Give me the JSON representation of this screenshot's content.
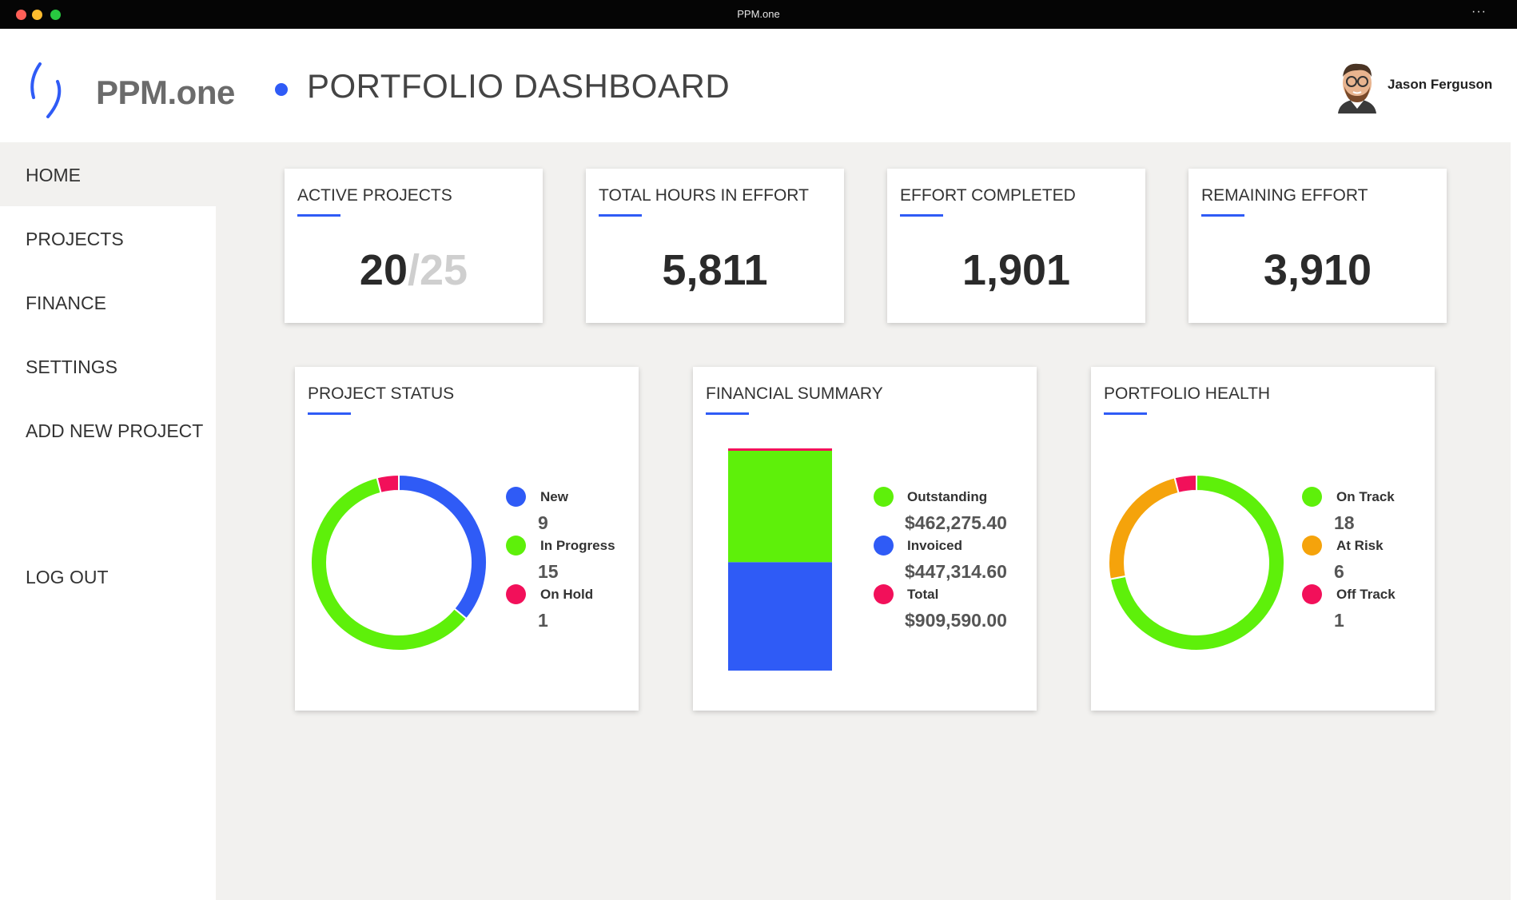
{
  "window": {
    "title": "PPM.one",
    "more_label": "···"
  },
  "header": {
    "logo_text": "PPM.one",
    "page_title": "PORTFOLIO DASHBOARD",
    "user_name": "Jason Ferguson",
    "accent_color": "#2f5bf6"
  },
  "sidebar": {
    "items": [
      {
        "label": "HOME",
        "active": true
      },
      {
        "label": "PROJECTS"
      },
      {
        "label": "FINANCE"
      },
      {
        "label": "SETTINGS"
      },
      {
        "label": "ADD NEW PROJECT"
      },
      {
        "label": "LOG OUT"
      }
    ]
  },
  "kpis": [
    {
      "title": "ACTIVE PROJECTS",
      "value": "20",
      "total": "/25"
    },
    {
      "title": "TOTAL HOURS IN EFFORT",
      "value": "5,811"
    },
    {
      "title": "EFFORT COMPLETED",
      "value": "1,901"
    },
    {
      "title": "REMAINING EFFORT",
      "value": "3,910"
    }
  ],
  "chart_data": [
    {
      "type": "pie",
      "title": "PROJECT STATUS",
      "style": "donut",
      "legend_position": "right",
      "categories": [
        "New",
        "In Progress",
        "On Hold"
      ],
      "values": [
        9,
        15,
        1
      ],
      "value_labels": [
        "9",
        "15",
        "1"
      ],
      "colors": [
        "#2f5bf6",
        "#5ef00a",
        "#f2105a"
      ]
    },
    {
      "type": "bar",
      "title": "FINANCIAL SUMMARY",
      "stacked": true,
      "legend_position": "right",
      "series": [
        {
          "name": "Invoiced",
          "values": [
            447314.6
          ],
          "label": "$447,314.60",
          "color": "#2f5bf6"
        },
        {
          "name": "Outstanding",
          "values": [
            462275.4
          ],
          "label": "$462,275.40",
          "color": "#5ef00a"
        }
      ],
      "legend": [
        {
          "name": "Outstanding",
          "label": "$462,275.40",
          "color": "#5ef00a"
        },
        {
          "name": "Invoiced",
          "label": "$447,314.60",
          "color": "#2f5bf6"
        },
        {
          "name": "Total",
          "label": "$909,590.00",
          "color": "#f2105a"
        }
      ],
      "total": 909590.0
    },
    {
      "type": "pie",
      "title": "PORTFOLIO HEALTH",
      "style": "donut",
      "legend_position": "right",
      "categories": [
        "On Track",
        "At Risk",
        "Off Track"
      ],
      "values": [
        18,
        6,
        1
      ],
      "value_labels": [
        "18",
        "6",
        "1"
      ],
      "colors": [
        "#5ef00a",
        "#f5a30b",
        "#f2105a"
      ]
    }
  ]
}
